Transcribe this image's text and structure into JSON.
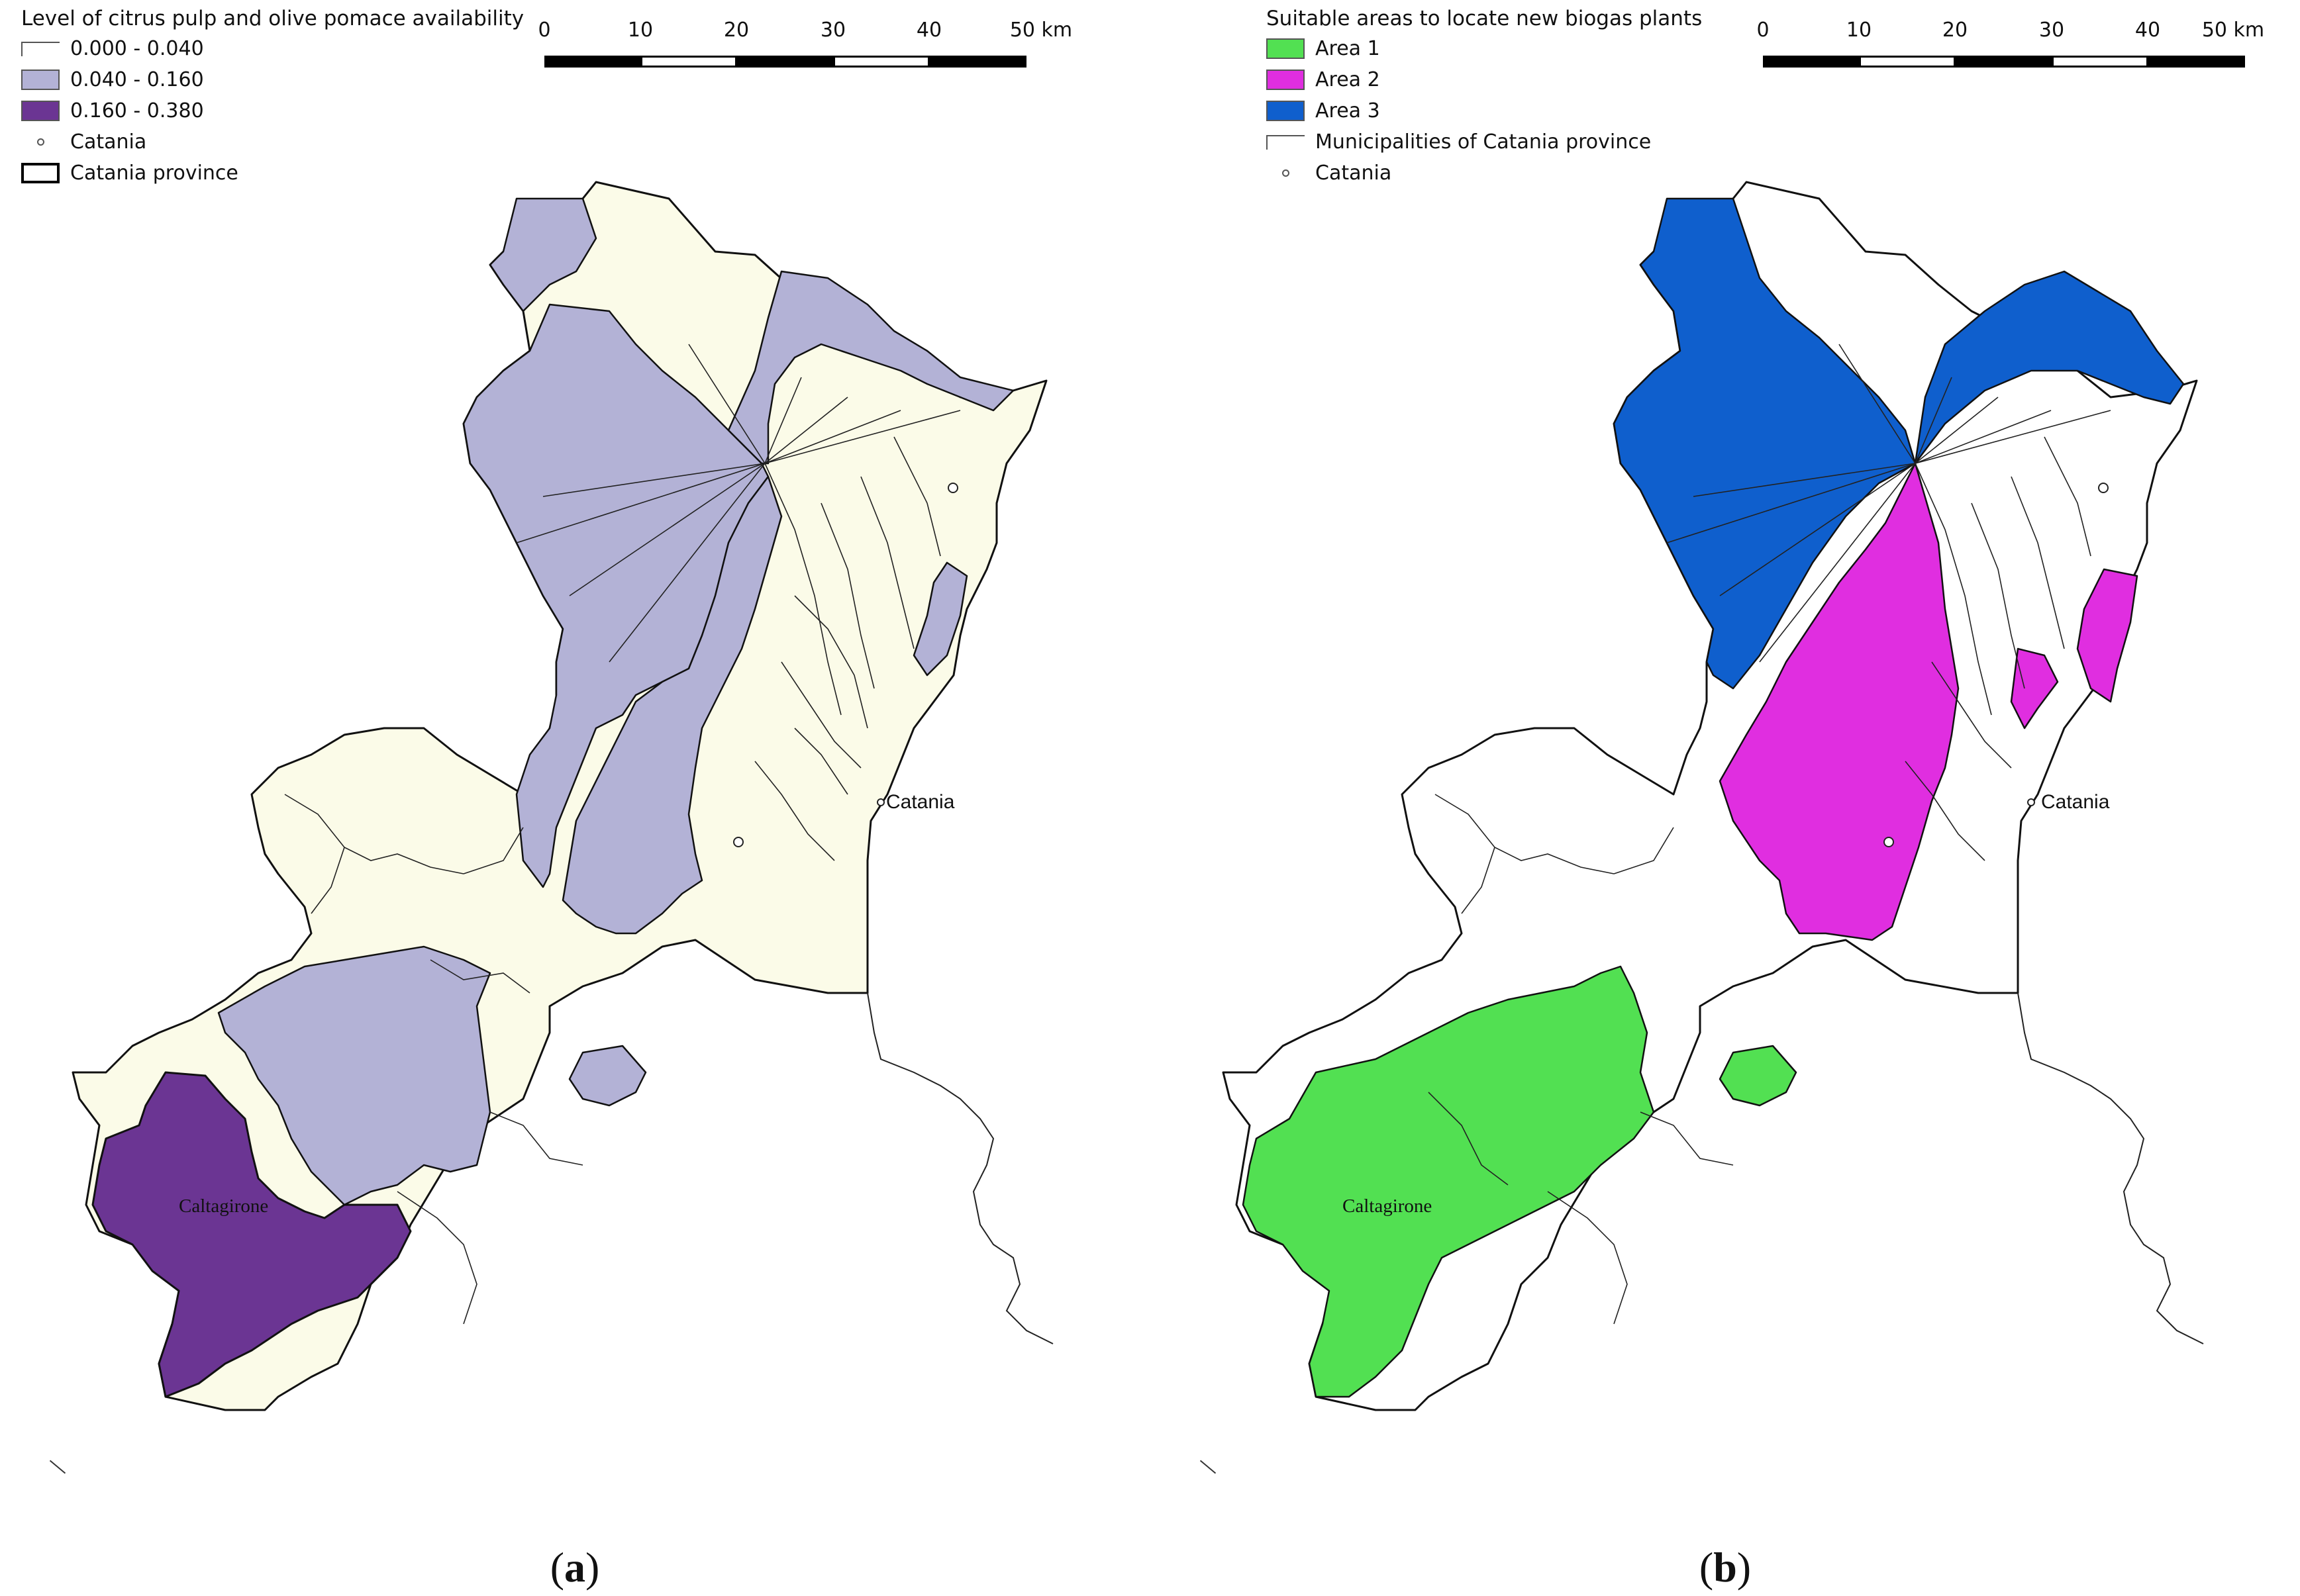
{
  "panels": [
    {
      "id": "a",
      "caption_letter": "a",
      "legend": {
        "title": "Level of citrus pulp and olive pomace availability",
        "items": [
          {
            "label": "0.000 - 0.040",
            "color": "#fbfbe8"
          },
          {
            "label": "0.040 - 0.160",
            "color": "#b3b2d6"
          },
          {
            "label": "0.160 - 0.380",
            "color": "#6b3593"
          },
          {
            "label": "Catania",
            "icon": "point-icon"
          },
          {
            "label": "Catania province",
            "icon": "province-outline"
          }
        ]
      },
      "scale": {
        "ticks": [
          "0",
          "10",
          "20",
          "30",
          "40",
          "50 km"
        ]
      },
      "labels": {
        "city": "Catania",
        "town": "Caltagirone"
      }
    },
    {
      "id": "b",
      "caption_letter": "b",
      "legend": {
        "title": "Suitable areas to locate new biogas plants",
        "items": [
          {
            "label": "Area 1",
            "color": "#52e052"
          },
          {
            "label": "Area 2",
            "color": "#e02ee0"
          },
          {
            "label": "Area 3",
            "color": "#0f5fcd"
          },
          {
            "label": "Municipalities of Catania province",
            "icon": "municipality-outline"
          },
          {
            "label": "Catania",
            "icon": "point-icon"
          }
        ]
      },
      "scale": {
        "ticks": [
          "0",
          "10",
          "20",
          "30",
          "40",
          "50 km"
        ]
      },
      "labels": {
        "city": "Catania",
        "town": "Caltagirone"
      }
    }
  ]
}
